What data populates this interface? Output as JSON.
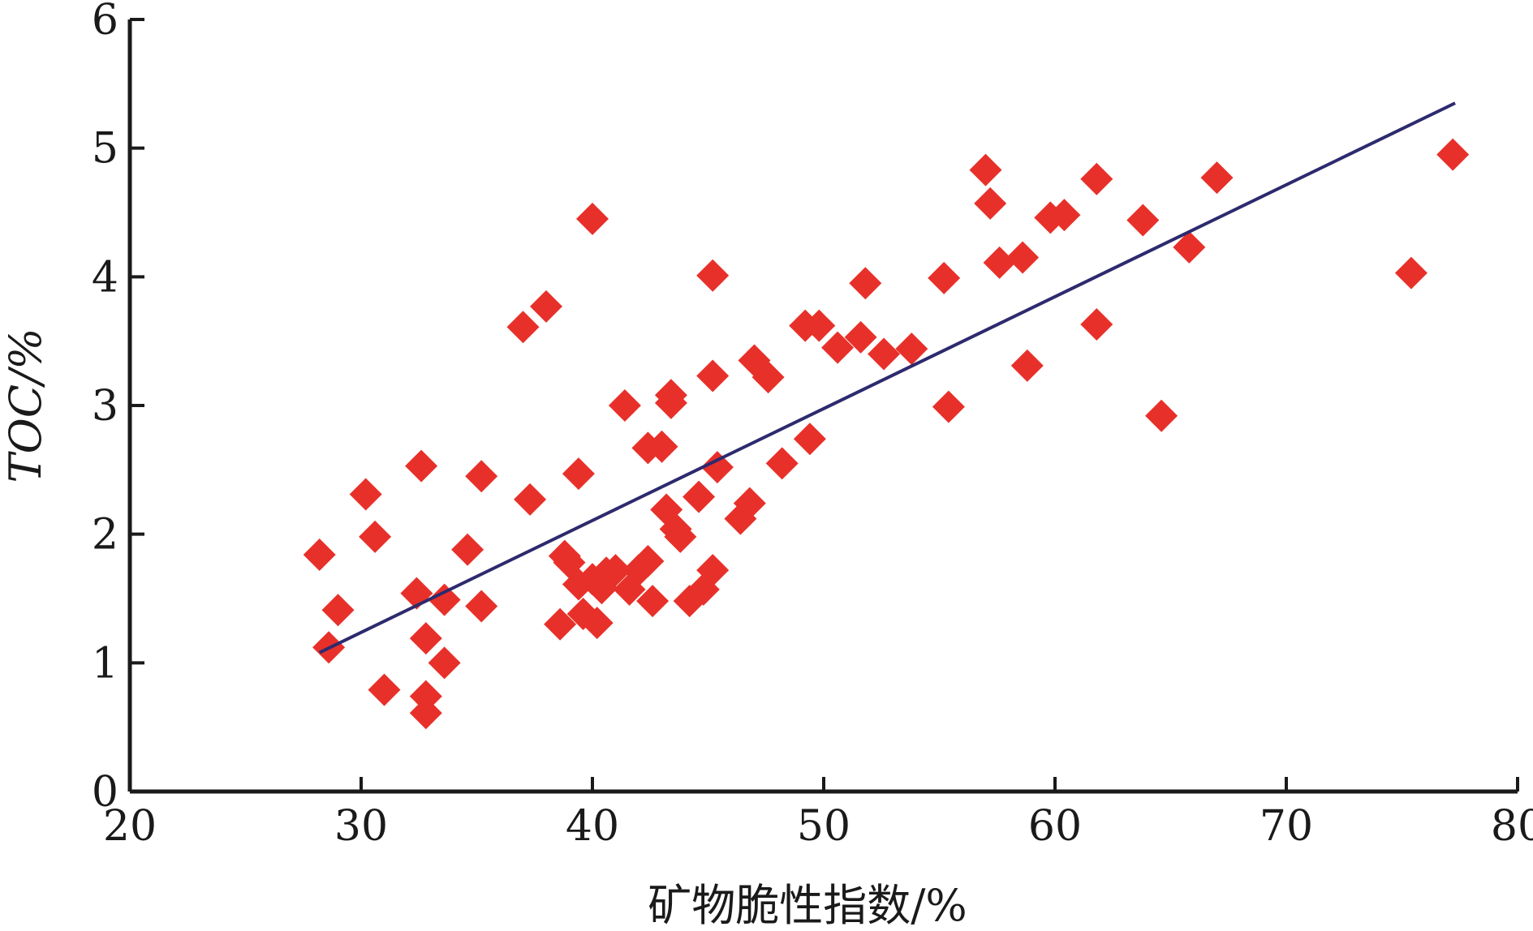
{
  "chart_data": {
    "type": "scatter",
    "title": "",
    "xlabel": "矿物脆性指数/%",
    "ylabel": "TOC/%",
    "xlim": [
      20,
      80
    ],
    "ylim": [
      0,
      6
    ],
    "x_ticks": [
      20,
      30,
      40,
      50,
      60,
      70,
      80
    ],
    "y_ticks": [
      0,
      1,
      2,
      3,
      4,
      5,
      6
    ],
    "grid": false,
    "legend": "none",
    "marker": "diamond",
    "marker_color": "#e8302a",
    "line_color": "#2e2a6e",
    "series": [
      {
        "points": [
          [
            28.2,
            1.84
          ],
          [
            28.6,
            1.12
          ],
          [
            29.0,
            1.41
          ],
          [
            30.2,
            2.31
          ],
          [
            30.6,
            1.98
          ],
          [
            31.0,
            0.79
          ],
          [
            32.4,
            1.54
          ],
          [
            32.6,
            2.53
          ],
          [
            32.8,
            1.19
          ],
          [
            32.8,
            0.74
          ],
          [
            32.8,
            0.61
          ],
          [
            33.6,
            1.49
          ],
          [
            33.6,
            1.0
          ],
          [
            34.6,
            1.88
          ],
          [
            35.2,
            2.45
          ],
          [
            35.2,
            1.44
          ],
          [
            37.0,
            3.61
          ],
          [
            37.3,
            2.27
          ],
          [
            38.0,
            3.77
          ],
          [
            38.6,
            1.3
          ],
          [
            38.8,
            1.83
          ],
          [
            39.0,
            1.78
          ],
          [
            39.4,
            2.47
          ],
          [
            39.4,
            1.61
          ],
          [
            39.6,
            1.38
          ],
          [
            40.0,
            4.45
          ],
          [
            40.0,
            1.65
          ],
          [
            40.2,
            1.31
          ],
          [
            40.4,
            1.58
          ],
          [
            40.6,
            1.7
          ],
          [
            41.0,
            1.72
          ],
          [
            41.4,
            3.0
          ],
          [
            41.6,
            1.57
          ],
          [
            42.0,
            1.72
          ],
          [
            42.4,
            1.79
          ],
          [
            42.4,
            2.67
          ],
          [
            42.6,
            1.48
          ],
          [
            43.0,
            2.68
          ],
          [
            43.2,
            2.19
          ],
          [
            43.4,
            3.02
          ],
          [
            43.4,
            3.08
          ],
          [
            43.6,
            2.04
          ],
          [
            43.8,
            1.98
          ],
          [
            44.2,
            1.48
          ],
          [
            44.6,
            2.29
          ],
          [
            44.8,
            1.57
          ],
          [
            45.2,
            1.72
          ],
          [
            45.2,
            4.01
          ],
          [
            45.2,
            3.23
          ],
          [
            45.4,
            2.52
          ],
          [
            46.4,
            2.12
          ],
          [
            46.8,
            2.24
          ],
          [
            47.0,
            3.35
          ],
          [
            47.6,
            3.22
          ],
          [
            48.2,
            2.55
          ],
          [
            49.2,
            3.62
          ],
          [
            49.4,
            2.74
          ],
          [
            49.8,
            3.62
          ],
          [
            50.6,
            3.45
          ],
          [
            51.6,
            3.53
          ],
          [
            51.8,
            3.95
          ],
          [
            52.6,
            3.4
          ],
          [
            53.8,
            3.44
          ],
          [
            55.2,
            3.99
          ],
          [
            55.4,
            2.99
          ],
          [
            57.0,
            4.83
          ],
          [
            57.2,
            4.57
          ],
          [
            57.6,
            4.11
          ],
          [
            58.6,
            4.15
          ],
          [
            58.8,
            3.31
          ],
          [
            59.8,
            4.46
          ],
          [
            60.4,
            4.48
          ],
          [
            61.8,
            4.76
          ],
          [
            61.8,
            3.63
          ],
          [
            63.8,
            4.44
          ],
          [
            64.6,
            2.92
          ],
          [
            65.8,
            4.23
          ],
          [
            67.0,
            4.77
          ],
          [
            75.4,
            4.03
          ],
          [
            77.2,
            4.95
          ]
        ]
      }
    ],
    "trendline": {
      "x": [
        28.2,
        77.3
      ],
      "y": [
        1.08,
        5.35
      ]
    }
  }
}
